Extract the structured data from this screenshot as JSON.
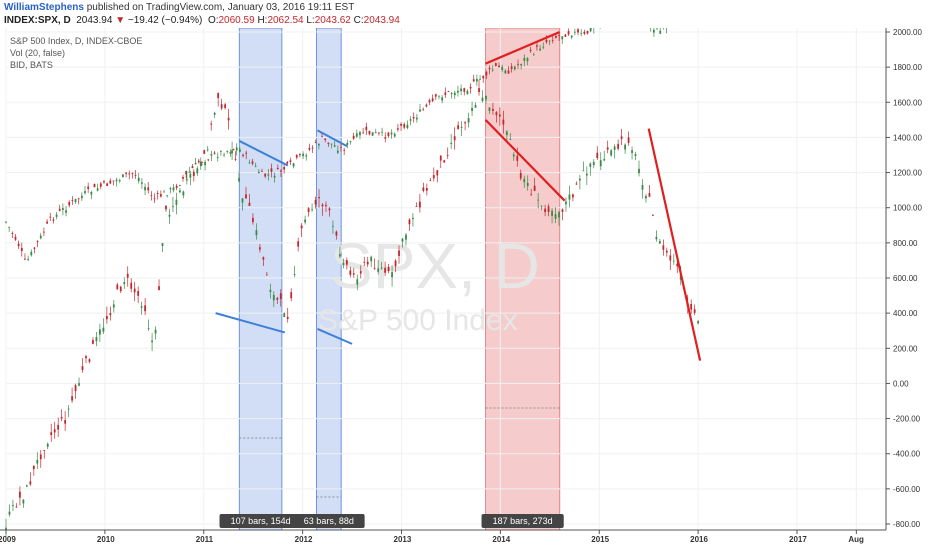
{
  "header": {
    "author": "WilliamStephens",
    "published": "published on TradingView.com, January 03, 2016 19:11 EST",
    "symbol": "INDEX:SPX, D",
    "last": "2043.94",
    "change": "−19.42 (−0.94%)",
    "o_label": "O:",
    "o": "2060.59",
    "h_label": "H:",
    "h": "2062.54",
    "l_label": "L:",
    "l": "2043.62",
    "c_label": "C:",
    "c": "2043.94"
  },
  "legend": [
    "S&P 500 Index, D, INDEX-CBOE",
    "Vol (20, false)",
    "BID, BATS"
  ],
  "watermark": {
    "symbol": "SPX, D",
    "name": "S&P 500 Index"
  },
  "colors": {
    "up": "#3a8a46",
    "down": "#c2272d",
    "blue_zone": "#c9d8f5",
    "red_zone": "#f4c2c2",
    "blue_line": "#3d7fd9",
    "red_line": "#e02020"
  },
  "chart_data": {
    "type": "line",
    "title": "S&P 500 Index, D, INDEX-CBOE",
    "y_ticks": [
      "2000.00",
      "1800.00",
      "1600.00",
      "1400.00",
      "1200.00",
      "1000.00",
      "800.00",
      "600.00",
      "400.00",
      "200.00",
      "0.00",
      "-200.00",
      "-400.00",
      "-600.00",
      "-800.00"
    ],
    "ylim": [
      -800,
      2000
    ],
    "x_ticks": [
      "2009",
      "2010",
      "2011",
      "2012",
      "2013",
      "2014",
      "2015",
      "2016",
      "2017",
      "Aug"
    ],
    "xlim": [
      2009.0,
      2017.9
    ],
    "series": [
      {
        "x": [
          2009.0,
          2009.12,
          2009.2,
          2009.45,
          2009.6,
          2009.8,
          2010.0,
          2010.3,
          2010.5,
          2010.7,
          2010.95,
          2011.2,
          2011.35,
          2011.6,
          2011.75,
          2011.9,
          2012.2,
          2012.4,
          2012.6,
          2012.85,
          2013.1,
          2013.4,
          2013.7,
          2013.95,
          2014.1,
          2014.3,
          2014.5,
          2014.7,
          2014.85,
          2015.0,
          2015.2,
          2015.4,
          2015.6,
          2015.8,
          2015.95,
          2016.0
        ],
        "values": [
          920,
          800,
          680,
          930,
          1000,
          1080,
          1130,
          1200,
          1050,
          1110,
          1260,
          1320,
          1340,
          1180,
          1200,
          1250,
          1390,
          1330,
          1430,
          1410,
          1500,
          1640,
          1690,
          1800,
          1780,
          1870,
          1960,
          2000,
          1980,
          2060,
          2100,
          2110,
          2000,
          2070,
          2080,
          2044
        ]
      },
      {
        "x": [
          2009.0,
          2009.1,
          2009.2,
          2009.4,
          2009.6,
          2009.8,
          2010.0,
          2010.2,
          2010.4,
          2010.5,
          2010.6,
          2010.85,
          2011.0,
          2011.15,
          2011.25,
          2011.35,
          2011.5,
          2011.7,
          2011.85,
          2012.0,
          2012.15,
          2012.25,
          2012.35,
          2012.5,
          2012.7,
          2012.9,
          2013.1,
          2013.35,
          2013.55,
          2013.8,
          2014.0,
          2014.2,
          2014.4,
          2014.6,
          2014.75,
          2014.9,
          2015.1,
          2015.3,
          2015.5,
          2015.6,
          2015.8,
          2015.9,
          2016.0
        ],
        "values": [
          -800,
          -680,
          -620,
          -330,
          -200,
          100,
          350,
          600,
          450,
          180,
          950,
          1150,
          1260,
          1650,
          1480,
          1150,
          920,
          500,
          400,
          900,
          1060,
          1000,
          800,
          600,
          700,
          600,
          950,
          1200,
          1420,
          1650,
          1520,
          1200,
          1020,
          980,
          1090,
          1250,
          1300,
          1400,
          1050,
          800,
          650,
          420,
          340
        ]
      }
    ],
    "shaded_ranges": [
      {
        "x": [
          2011.36,
          2011.79
        ],
        "color": "blue",
        "label": "107 bars, 154d"
      },
      {
        "x": [
          2012.14,
          2012.39
        ],
        "color": "blue",
        "label": "63 bars, 88d"
      },
      {
        "x": [
          2013.85,
          2014.6
        ],
        "color": "red",
        "label": "187 bars, 273d"
      }
    ]
  }
}
